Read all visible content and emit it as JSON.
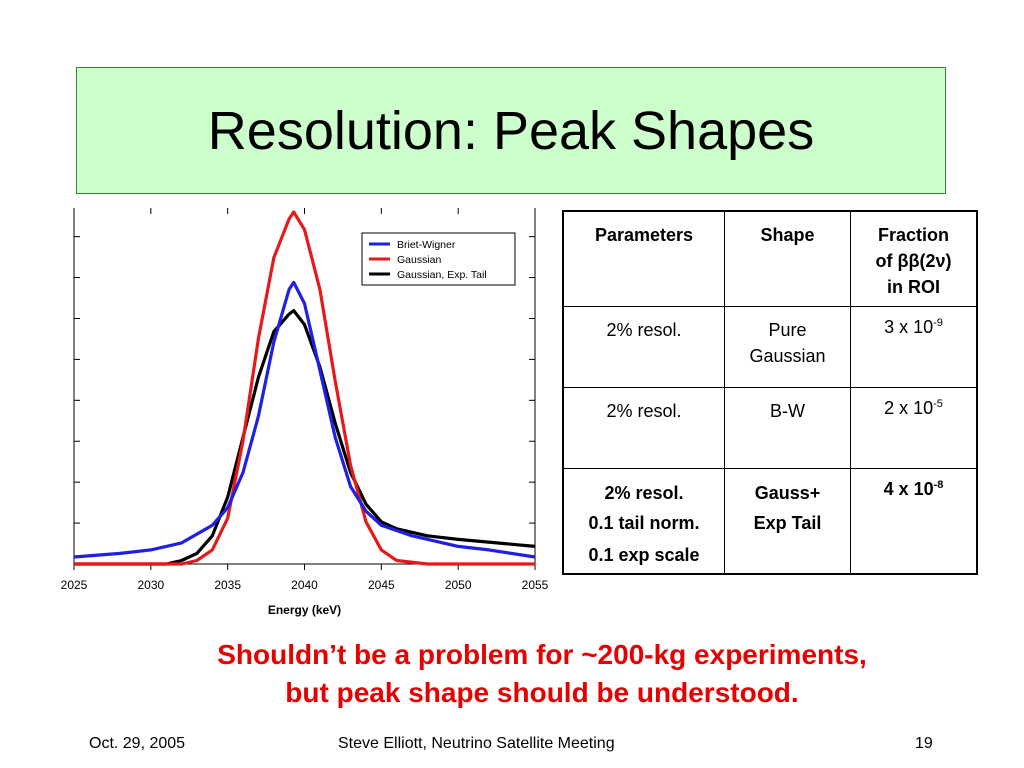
{
  "slide": {
    "title": "Resolution: Peak Shapes",
    "note_line1": "Shouldn’t be a problem for ~200-kg experiments,",
    "note_line2": "but peak shape should be understood.",
    "footer_date": "Oct. 29, 2005",
    "footer_center": "Steve Elliott, Neutrino Satellite Meeting",
    "page_number": "19"
  },
  "table": {
    "headers": [
      "Parameters",
      "Shape",
      "Fraction of ββ(2ν) in ROI"
    ],
    "header_fraction_lines": [
      "Fraction",
      "of ββ(2ν)",
      "in ROI"
    ],
    "rows": [
      {
        "parameters": [
          "2% resol."
        ],
        "shape": [
          "Pure",
          "Gaussian"
        ],
        "fraction_base": "3 x 10",
        "fraction_exp": "-9"
      },
      {
        "parameters": [
          "2% resol."
        ],
        "shape": [
          "B-W"
        ],
        "fraction_base": "2 x 10",
        "fraction_exp": "-5"
      },
      {
        "parameters": [
          "2% resol.",
          "0.1 tail norm.",
          "0.1 exp scale"
        ],
        "shape": [
          "Gauss+",
          "Exp Tail"
        ],
        "fraction_base": "4 x 10",
        "fraction_exp": "-8"
      }
    ]
  },
  "chart_data": {
    "type": "line",
    "xlabel": "Energy (keV)",
    "ylabel": "",
    "xlim": [
      2025,
      2055
    ],
    "x_ticks": [
      "2025",
      "2030",
      "2035",
      "2040",
      "2045",
      "2050",
      "2055"
    ],
    "ylim": [
      0,
      1.0
    ],
    "y_tick_labels_shown": false,
    "legend_position": "top-right",
    "series": [
      {
        "name": "Briet-Wigner",
        "color": "#1f1fe6",
        "x": [
          2025,
          2028,
          2030,
          2032,
          2034,
          2035,
          2036,
          2037,
          2038,
          2039,
          2039.3,
          2040,
          2041,
          2042,
          2043,
          2044,
          2045,
          2047,
          2050,
          2052,
          2055
        ],
        "y": [
          0.02,
          0.03,
          0.04,
          0.06,
          0.11,
          0.16,
          0.26,
          0.42,
          0.63,
          0.78,
          0.8,
          0.74,
          0.55,
          0.36,
          0.22,
          0.15,
          0.11,
          0.08,
          0.05,
          0.04,
          0.02
        ]
      },
      {
        "name": "Gaussian",
        "color": "#e61a1a",
        "x": [
          2025,
          2030,
          2032,
          2033,
          2034,
          2035,
          2036,
          2037,
          2038,
          2039,
          2039.3,
          2040,
          2041,
          2042,
          2043,
          2044,
          2045,
          2046,
          2048,
          2050,
          2055
        ],
        "y": [
          0.0,
          0.0,
          0.0,
          0.01,
          0.04,
          0.13,
          0.35,
          0.64,
          0.87,
          0.98,
          1.0,
          0.95,
          0.78,
          0.52,
          0.28,
          0.12,
          0.04,
          0.01,
          0.0,
          0.0,
          0.0
        ]
      },
      {
        "name": "Gaussian, Exp. Tail",
        "color": "#000000",
        "x": [
          2025,
          2031,
          2032,
          2033,
          2034,
          2035,
          2036,
          2037,
          2038,
          2039,
          2039.3,
          2040,
          2041,
          2042,
          2043,
          2044,
          2045,
          2046,
          2048,
          2050,
          2055
        ],
        "y": [
          0.0,
          0.0,
          0.01,
          0.03,
          0.08,
          0.19,
          0.36,
          0.53,
          0.66,
          0.71,
          0.72,
          0.68,
          0.56,
          0.4,
          0.26,
          0.17,
          0.12,
          0.1,
          0.08,
          0.07,
          0.05
        ]
      }
    ]
  }
}
